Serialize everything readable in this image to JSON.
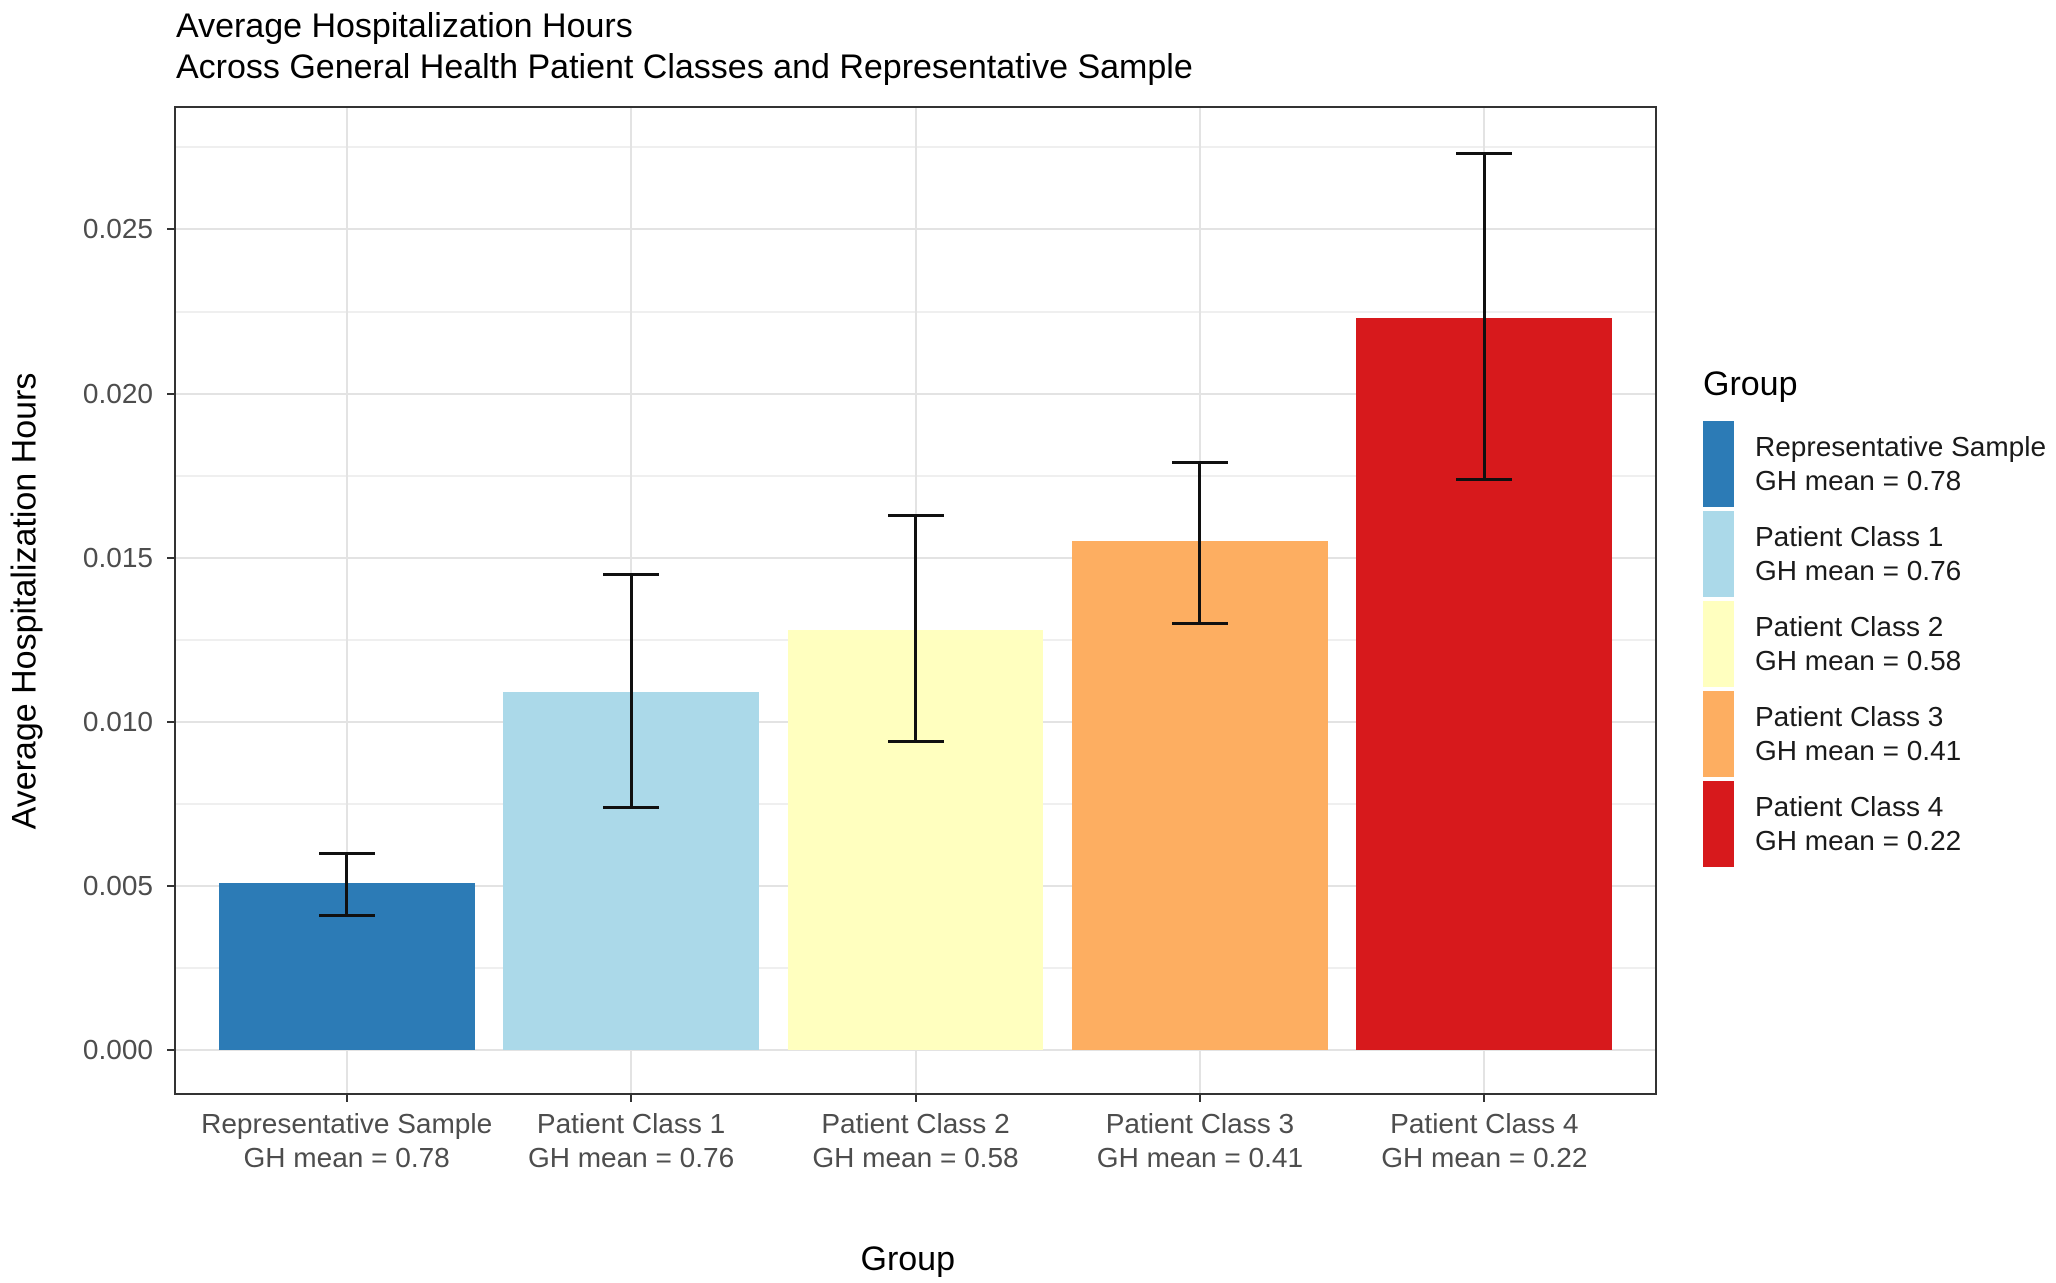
{
  "title": {
    "line1": "Average Hospitalization Hours",
    "line2": "Across General Health Patient Classes and Representative Sample"
  },
  "axes": {
    "x_title": "Group",
    "y_title": "Average Hospitalization Hours"
  },
  "legend": {
    "title": "Group",
    "entries": [
      {
        "label_line1": "Representative Sample",
        "label_line2": "GH mean = 0.78",
        "color": "#2C7BB6"
      },
      {
        "label_line1": "Patient Class 1",
        "label_line2": "GH mean = 0.76",
        "color": "#ABD9E9"
      },
      {
        "label_line1": "Patient Class 2",
        "label_line2": "GH mean = 0.58",
        "color": "#FFFFBF"
      },
      {
        "label_line1": "Patient Class 3",
        "label_line2": "GH mean = 0.41",
        "color": "#FDAE61"
      },
      {
        "label_line1": "Patient Class 4",
        "label_line2": "GH mean = 0.22",
        "color": "#D7191C"
      }
    ]
  },
  "chart_data": {
    "type": "bar",
    "title": "Average Hospitalization Hours\nAcross General Health Patient Classes and Representative Sample",
    "xlabel": "Group",
    "ylabel": "Average Hospitalization Hours",
    "categories": [
      "Representative Sample",
      "Patient Class 1",
      "Patient Class 2",
      "Patient Class 3",
      "Patient Class 4"
    ],
    "category_sublabels": [
      "GH mean = 0.78",
      "GH mean = 0.76",
      "GH mean = 0.58",
      "GH mean = 0.41",
      "GH mean = 0.22"
    ],
    "values": [
      0.0051,
      0.0109,
      0.0128,
      0.0155,
      0.0223
    ],
    "error_low": [
      0.0041,
      0.0074,
      0.0094,
      0.013,
      0.0174
    ],
    "error_high": [
      0.006,
      0.0145,
      0.0163,
      0.0179,
      0.0273
    ],
    "bar_colors": [
      "#2C7BB6",
      "#ABD9E9",
      "#FFFFBF",
      "#FDAE61",
      "#D7191C"
    ],
    "ylim": [
      -0.0013,
      0.0287
    ],
    "yticks": [
      {
        "value": 0.0,
        "label": "0.000"
      },
      {
        "value": 0.005,
        "label": "0.005"
      },
      {
        "value": 0.01,
        "label": "0.010"
      },
      {
        "value": 0.015,
        "label": "0.015"
      },
      {
        "value": 0.02,
        "label": "0.020"
      },
      {
        "value": 0.025,
        "label": "0.025"
      }
    ],
    "yticks_minor": [
      0.0025,
      0.0075,
      0.0125,
      0.0175,
      0.0225,
      0.0275
    ],
    "grid": true,
    "legend_position": "right",
    "error_bar_color": "#101010"
  }
}
